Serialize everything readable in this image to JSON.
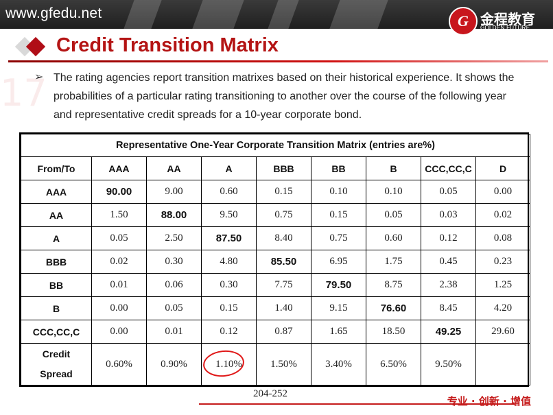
{
  "header": {
    "site_url": "www.gfedu.net",
    "logo_cn": "金程教育",
    "logo_en": "GOLDEN FUTURE",
    "logo_glyph": "G"
  },
  "slide": {
    "title": "Credit Transition Matrix",
    "watermark": "17",
    "bullet": "The rating agencies report transition matrixes based on their historical experience. It shows the probabilities of a particular rating transitioning to another over the course of the following year and representative credit spreads for a 10-year corporate bond."
  },
  "table": {
    "caption": "Representative One-Year Corporate Transition Matrix (entries are%)",
    "corner": "From/To",
    "columns": [
      "AAA",
      "AA",
      "A",
      "BBB",
      "BB",
      "B",
      "CCC,CC,C",
      "D"
    ],
    "rows": [
      {
        "label": "AAA",
        "values": [
          "90.00",
          "9.00",
          "0.60",
          "0.15",
          "0.10",
          "0.10",
          "0.05",
          "0.00"
        ]
      },
      {
        "label": "AA",
        "values": [
          "1.50",
          "88.00",
          "9.50",
          "0.75",
          "0.15",
          "0.05",
          "0.03",
          "0.02"
        ]
      },
      {
        "label": "A",
        "values": [
          "0.05",
          "2.50",
          "87.50",
          "8.40",
          "0.75",
          "0.60",
          "0.12",
          "0.08"
        ]
      },
      {
        "label": "BBB",
        "values": [
          "0.02",
          "0.30",
          "4.80",
          "85.50",
          "6.95",
          "1.75",
          "0.45",
          "0.23"
        ]
      },
      {
        "label": "BB",
        "values": [
          "0.01",
          "0.06",
          "0.30",
          "7.75",
          "79.50",
          "8.75",
          "2.38",
          "1.25"
        ]
      },
      {
        "label": "B",
        "values": [
          "0.00",
          "0.05",
          "0.15",
          "1.40",
          "9.15",
          "76.60",
          "8.45",
          "4.20"
        ]
      },
      {
        "label": "CCC,CC,C",
        "values": [
          "0.00",
          "0.01",
          "0.12",
          "0.87",
          "1.65",
          "18.50",
          "49.25",
          "29.60"
        ]
      }
    ],
    "spread": {
      "label_line1": "Credit",
      "label_line2": "Spread",
      "values": [
        "0.60%",
        "0.90%",
        "1.10%",
        "1.50%",
        "3.40%",
        "6.50%",
        "9.50%",
        ""
      ]
    }
  },
  "footer": {
    "page_number": "204-252",
    "slogan": "专业 · 创新 · 增值"
  },
  "colors": {
    "title_red": "#b41414",
    "header_dark": "#2b2b2b",
    "highlight_circle": "#e01818"
  }
}
